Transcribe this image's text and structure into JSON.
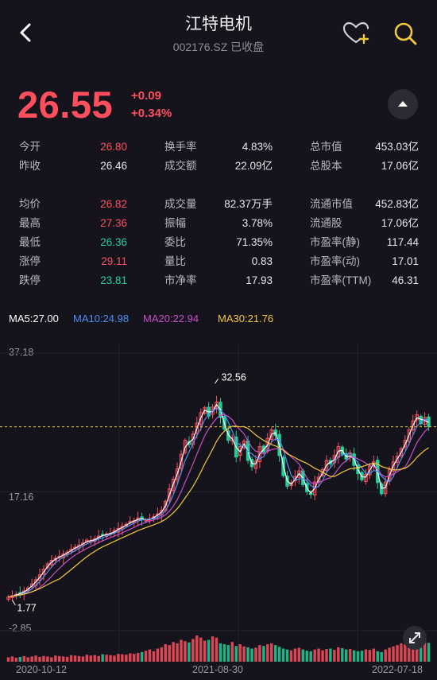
{
  "header": {
    "title": "江特电机",
    "subtitle": "002176.SZ  已收盘",
    "icons": [
      "back-arrow-icon",
      "heart-plus-icon",
      "search-icon"
    ]
  },
  "price": {
    "last": "26.55",
    "change": "+0.09",
    "change_pct": "+0.34%"
  },
  "quote": {
    "col1": [
      {
        "label": "今开",
        "value": "26.80",
        "color": "red"
      },
      {
        "label": "昨收",
        "value": "26.46",
        "color": ""
      },
      {
        "label": "均价",
        "value": "26.82",
        "color": "red"
      },
      {
        "label": "最高",
        "value": "27.36",
        "color": "red"
      },
      {
        "label": "最低",
        "value": "26.36",
        "color": "green"
      },
      {
        "label": "涨停",
        "value": "29.11",
        "color": "red"
      },
      {
        "label": "跌停",
        "value": "23.81",
        "color": "green"
      }
    ],
    "col2": [
      {
        "label": "换手率",
        "value": "4.83%"
      },
      {
        "label": "成交额",
        "value": "22.09亿"
      },
      {
        "label": "成交量",
        "value": "82.37万手"
      },
      {
        "label": "振幅",
        "value": "3.78%"
      },
      {
        "label": "委比",
        "value": "71.35%"
      },
      {
        "label": "量比",
        "value": "0.83"
      },
      {
        "label": "市净率",
        "value": "17.93"
      }
    ],
    "col3": [
      {
        "label": "总市值",
        "value": "453.03亿"
      },
      {
        "label": "总股本",
        "value": "17.06亿"
      },
      {
        "label": "流通市值",
        "value": "452.83亿"
      },
      {
        "label": "流通股",
        "value": "17.06亿"
      },
      {
        "label": "市盈率(静)",
        "value": "117.44"
      },
      {
        "label": "市盈率(动)",
        "value": "17.01"
      },
      {
        "label": "市盈率(TTM)",
        "value": "46.31"
      }
    ]
  },
  "ma_legend": [
    {
      "label": "MA5:27.00",
      "color": "#ffffff"
    },
    {
      "label": "MA10:24.98",
      "color": "#4f8ff5"
    },
    {
      "label": "MA20:22.94",
      "color": "#c94fc8"
    },
    {
      "label": "MA30:21.76",
      "color": "#f3c83e"
    }
  ],
  "chart": {
    "y_axis_labels": [
      "37.18",
      "17.16",
      "-2.85"
    ],
    "x_axis_labels": [
      "2020-10-12",
      "2021-08-30",
      "2022-07-18"
    ],
    "high_marker": "32.56",
    "low_marker": "1.77",
    "current_price": 26.55,
    "up_color": "#ff4f5e",
    "down_color": "#1fcf98"
  },
  "chart_data": {
    "type": "candlestick",
    "x_range": [
      "2020-10-12",
      "2022-07-18"
    ],
    "ylim": [
      -2.85,
      37.18
    ],
    "series": [
      {
        "name": "MA5",
        "value": 27.0
      },
      {
        "name": "MA10",
        "value": 24.98
      },
      {
        "name": "MA20",
        "value": 22.94
      },
      {
        "name": "MA30",
        "value": 21.76
      }
    ],
    "closes": [
      2.0,
      2.2,
      2.4,
      2.6,
      2.9,
      3.3,
      3.9,
      4.5,
      5.2,
      6.0,
      6.8,
      7.3,
      7.6,
      7.9,
      8.2,
      8.5,
      8.9,
      9.2,
      9.5,
      9.8,
      10.2,
      10.1,
      10.4,
      10.8,
      10.9,
      11.1,
      11.2,
      11.6,
      11.9,
      12.2,
      12.5,
      12.9,
      13.0,
      13.4,
      13.2,
      13.1,
      13.3,
      13.6,
      14.0,
      14.5,
      15.8,
      17.6,
      19.0,
      20.5,
      22.6,
      24.6,
      24.0,
      25.5,
      27.1,
      28.6,
      29.3,
      28.1,
      29.4,
      30.1,
      27.9,
      26.2,
      24.6,
      25.0,
      22.2,
      23.7,
      24.5,
      21.7,
      20.8,
      21.6,
      23.7,
      22.9,
      24.9,
      26.1,
      25.3,
      22.4,
      19.5,
      18.0,
      18.5,
      19.4,
      20.2,
      18.2,
      17.2,
      16.8,
      18.6,
      19.3,
      20.4,
      21.7,
      21.2,
      22.4,
      23.7,
      22.6,
      21.9,
      22.8,
      21.0,
      19.8,
      18.9,
      19.7,
      20.9,
      21.5,
      18.5,
      16.9,
      18.6,
      20.4,
      21.5,
      22.3,
      23.4,
      24.6,
      26.1,
      27.4,
      28.3,
      27.0,
      27.9,
      26.55
    ],
    "volumes": [
      10,
      12,
      9,
      11,
      13,
      10,
      12,
      14,
      11,
      13,
      12,
      10,
      14,
      13,
      12,
      11,
      15,
      14,
      13,
      12,
      16,
      14,
      15,
      13,
      17,
      16,
      15,
      14,
      18,
      17,
      16,
      19,
      18,
      20,
      22,
      25,
      28,
      24,
      30,
      33,
      40,
      38,
      45,
      42,
      50,
      47,
      44,
      52,
      60,
      55,
      48,
      50,
      58,
      55,
      42,
      40,
      38,
      45,
      36,
      40,
      35,
      33,
      30,
      32,
      38,
      36,
      40,
      42,
      38,
      34,
      30,
      28,
      26,
      30,
      32,
      28,
      25,
      24,
      28,
      30,
      26,
      29,
      30,
      27,
      33,
      31,
      28,
      29,
      26,
      24,
      25,
      28,
      27,
      30,
      24,
      22,
      28,
      32,
      35,
      38,
      42,
      40,
      45,
      48,
      52,
      44,
      46,
      43
    ],
    "high": 32.56,
    "low": 1.77
  }
}
